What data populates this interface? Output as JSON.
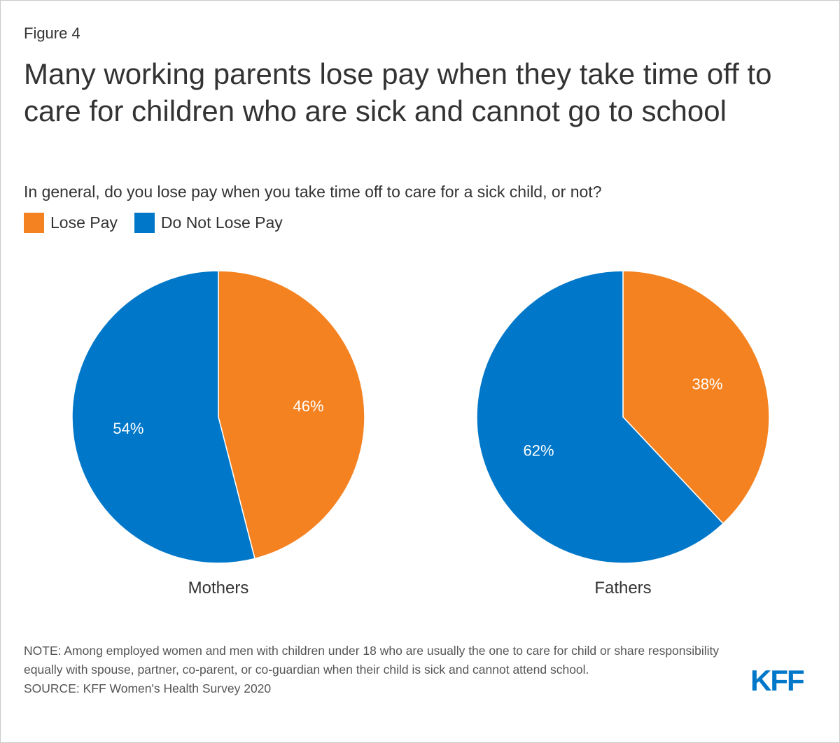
{
  "figure_label": "Figure 4",
  "title": "Many working parents lose pay when they take time off to care for children who are sick and cannot go to school",
  "subtitle": "In general, do you lose pay when you take time off to care for a sick child, or not?",
  "legend": [
    {
      "label": "Lose Pay",
      "color": "#f58220"
    },
    {
      "label": "Do Not Lose Pay",
      "color": "#0077c8"
    }
  ],
  "chart_data": [
    {
      "type": "pie",
      "title": "Mothers",
      "slices": [
        {
          "label": "Lose Pay",
          "value": 46,
          "display": "46%",
          "color": "#f58220"
        },
        {
          "label": "Do Not Lose Pay",
          "value": 54,
          "display": "54%",
          "color": "#0077c8"
        }
      ]
    },
    {
      "type": "pie",
      "title": "Fathers",
      "slices": [
        {
          "label": "Lose Pay",
          "value": 38,
          "display": "38%",
          "color": "#f58220"
        },
        {
          "label": "Do Not Lose Pay",
          "value": 62,
          "display": "62%",
          "color": "#0077c8"
        }
      ]
    }
  ],
  "notes": {
    "note": "NOTE: Among employed women and men with children under 18 who are usually the one to care for child or share responsibility equally with spouse, partner, co-parent, or co-guardian when their child is sick and cannot attend school.",
    "source": "SOURCE: KFF Women's Health Survey 2020"
  },
  "logo": {
    "text": "KFF",
    "color": "#0077c8"
  }
}
